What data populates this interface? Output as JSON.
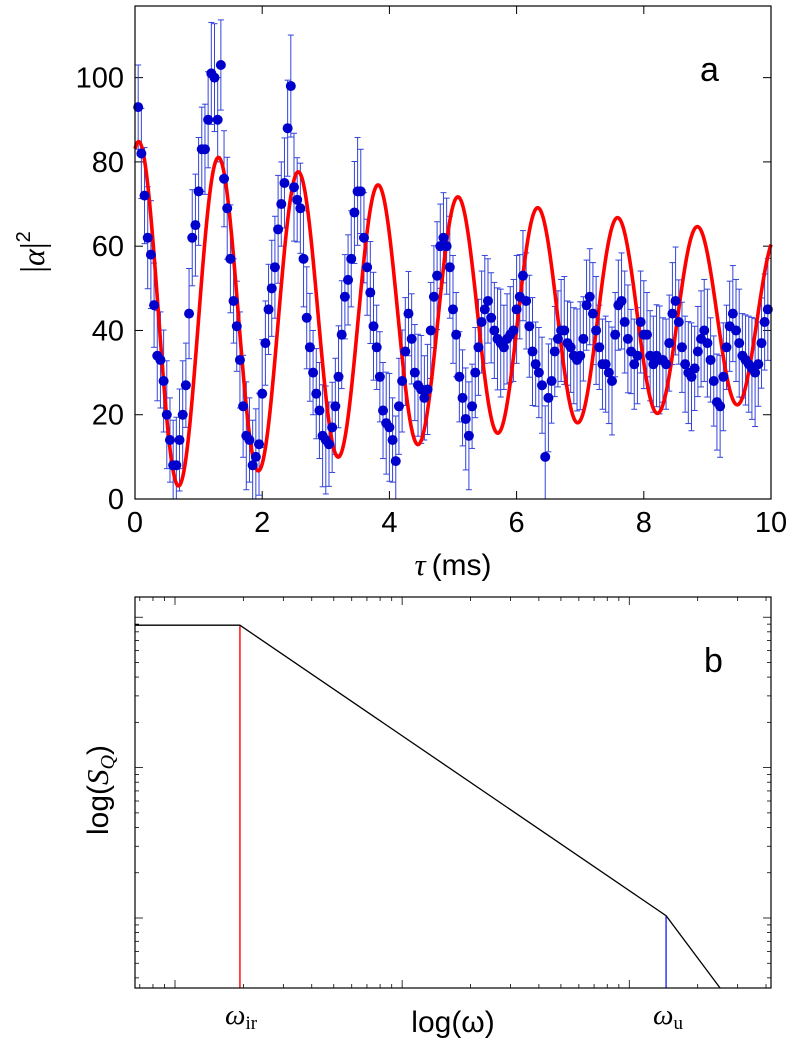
{
  "chart_data": [
    {
      "type": "scatter",
      "panel_label": "a",
      "xlabel_symbol": "τ",
      "xlabel_unit": "(ms)",
      "ylabel_symbol": "α",
      "ylabel_power": "2",
      "xlim": [
        0,
        10
      ],
      "ylim": [
        0,
        117
      ],
      "xticks": [
        0,
        2,
        4,
        6,
        8,
        10
      ],
      "yticks": [
        0,
        20,
        40,
        60,
        80,
        100
      ],
      "colors": {
        "points": "#0000cc",
        "errorbars": "#3344dd",
        "fit": "#ff0000"
      },
      "fit": {
        "name": "fit",
        "offset": 43,
        "amp0": 42,
        "decay_per_ms": 0.075,
        "period_ms": 1.255,
        "phase_ms": 0.06
      },
      "series": [
        {
          "name": "data",
          "x": [
            0.05,
            0.1,
            0.15,
            0.2,
            0.25,
            0.3,
            0.35,
            0.4,
            0.45,
            0.5,
            0.55,
            0.6,
            0.65,
            0.7,
            0.75,
            0.8,
            0.85,
            0.9,
            0.95,
            1.0,
            1.05,
            1.1,
            1.15,
            1.2,
            1.25,
            1.3,
            1.35,
            1.4,
            1.45,
            1.5,
            1.55,
            1.6,
            1.65,
            1.7,
            1.75,
            1.8,
            1.85,
            1.9,
            1.95,
            2.0,
            2.05,
            2.1,
            2.15,
            2.2,
            2.25,
            2.3,
            2.35,
            2.4,
            2.45,
            2.5,
            2.55,
            2.6,
            2.65,
            2.7,
            2.75,
            2.8,
            2.85,
            2.9,
            2.95,
            3.0,
            3.05,
            3.1,
            3.15,
            3.2,
            3.25,
            3.3,
            3.35,
            3.4,
            3.45,
            3.5,
            3.55,
            3.6,
            3.65,
            3.7,
            3.75,
            3.8,
            3.85,
            3.9,
            3.95,
            4.0,
            4.05,
            4.1,
            4.15,
            4.2,
            4.25,
            4.3,
            4.35,
            4.4,
            4.45,
            4.5,
            4.55,
            4.6,
            4.65,
            4.7,
            4.75,
            4.8,
            4.85,
            4.9,
            4.95,
            5.0,
            5.05,
            5.1,
            5.15,
            5.2,
            5.25,
            5.3,
            5.35,
            5.4,
            5.45,
            5.5,
            5.55,
            5.6,
            5.65,
            5.7,
            5.75,
            5.8,
            5.85,
            5.9,
            5.95,
            6.0,
            6.05,
            6.1,
            6.15,
            6.2,
            6.25,
            6.3,
            6.35,
            6.4,
            6.45,
            6.5,
            6.55,
            6.6,
            6.65,
            6.7,
            6.75,
            6.8,
            6.85,
            6.9,
            6.95,
            7.0,
            7.05,
            7.1,
            7.15,
            7.2,
            7.25,
            7.3,
            7.35,
            7.4,
            7.45,
            7.5,
            7.55,
            7.6,
            7.65,
            7.7,
            7.75,
            7.8,
            7.85,
            7.9,
            7.95,
            8.0,
            8.05,
            8.1,
            8.15,
            8.2,
            8.25,
            8.3,
            8.35,
            8.4,
            8.45,
            8.5,
            8.55,
            8.6,
            8.65,
            8.7,
            8.75,
            8.8,
            8.85,
            8.9,
            8.95,
            9.0,
            9.05,
            9.1,
            9.15,
            9.2,
            9.25,
            9.3,
            9.35,
            9.4,
            9.45,
            9.5,
            9.55,
            9.6,
            9.65,
            9.7,
            9.75,
            9.8,
            9.85,
            9.9,
            9.95
          ],
          "y": [
            93,
            82,
            72,
            62,
            58,
            46,
            34,
            33,
            28,
            20,
            14,
            8,
            8,
            14,
            20,
            27,
            44,
            62,
            65,
            73,
            83,
            83,
            90,
            101,
            100,
            90,
            103,
            76,
            69,
            57,
            47,
            41,
            33,
            22,
            15,
            14,
            8,
            10,
            13,
            25,
            37,
            45,
            50,
            55,
            64,
            70,
            75,
            88,
            98,
            74,
            71,
            69,
            57,
            43,
            36,
            30,
            25,
            21,
            15,
            14,
            13,
            17,
            22,
            29,
            39,
            48,
            52,
            57,
            68,
            73,
            73,
            62,
            55,
            49,
            41,
            36,
            29,
            21,
            18,
            17,
            14,
            9,
            22,
            28,
            35,
            44,
            38,
            30,
            27,
            26,
            24,
            26,
            40,
            48,
            53,
            60,
            62,
            60,
            55,
            45,
            39,
            29,
            24,
            19,
            15,
            22,
            30,
            36,
            42,
            45,
            47,
            43,
            40,
            38,
            37,
            36,
            38,
            39,
            40,
            45,
            48,
            53,
            47,
            41,
            35,
            32,
            30,
            27,
            10,
            24,
            28,
            35,
            38,
            40,
            40,
            37,
            36,
            34,
            33,
            34,
            38,
            46,
            48,
            44,
            40,
            36,
            32,
            32,
            30,
            28,
            39,
            46,
            47,
            42,
            38,
            35,
            32,
            34,
            42,
            39,
            39,
            34,
            32,
            34,
            33,
            33,
            32,
            37,
            44,
            47,
            42,
            36,
            32,
            30,
            29,
            31,
            35,
            38,
            40,
            37,
            33,
            28,
            23,
            22,
            29,
            36,
            41,
            44,
            40,
            37,
            34,
            33,
            32,
            31,
            30,
            32,
            37,
            42,
            45
          ]
        }
      ]
    },
    {
      "type": "line",
      "panel_label": "b",
      "xlabel": "log(ω)",
      "ylabel_prefix": "log(",
      "ylabel_symbol": "S",
      "ylabel_sub": "Q",
      "ylabel_suffix": ")",
      "xscale": "log",
      "yscale": "log",
      "xlim": [
        0,
        10
      ],
      "ylim": [
        0,
        10
      ],
      "tick_labels": [
        {
          "name": "omega-ir",
          "symbol": "ω",
          "sub": "ir",
          "x": 1.65
        },
        {
          "name": "omega-u",
          "symbol": "ω",
          "sub": "u",
          "x": 8.35
        }
      ],
      "colors": {
        "spectrum": "#000000",
        "ir_marker": "#ff0000",
        "u_marker": "#0000ff"
      },
      "series": [
        {
          "name": "spectrum",
          "x": [
            0,
            1.65,
            8.35,
            9.2
          ],
          "y": [
            9.28,
            9.28,
            1.85,
            0
          ]
        },
        {
          "name": "omega-ir-marker",
          "x": [
            1.65,
            1.65
          ],
          "y": [
            0,
            9.28
          ]
        },
        {
          "name": "omega-u-marker",
          "x": [
            8.35,
            8.35
          ],
          "y": [
            0,
            1.85
          ]
        }
      ]
    }
  ]
}
